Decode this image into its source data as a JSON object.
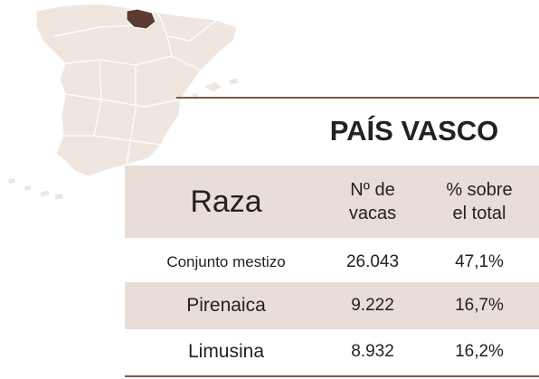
{
  "title": "PAÍS VASCO",
  "table": {
    "header": [
      [
        "Raza"
      ],
      [
        "Nº de",
        "vacas"
      ],
      [
        "% sobre",
        "el total"
      ]
    ],
    "rows": [
      [
        "Conjunto mestizo",
        "26.043",
        "47,1%"
      ],
      [
        "Pirenaica",
        "9.222",
        "16,7%"
      ],
      [
        "Limusina",
        "8.932",
        "16,2%"
      ]
    ]
  }
}
